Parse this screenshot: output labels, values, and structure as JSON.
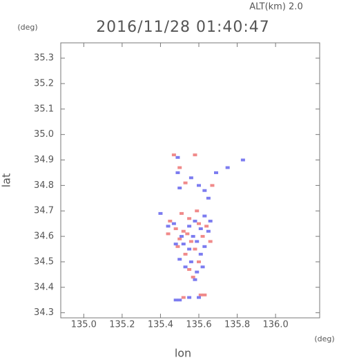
{
  "chart_data": {
    "type": "scatter",
    "title": "2016/11/28 01:40:47",
    "annotation": "ALT(km) 2.0",
    "y_unit": "(deg)",
    "x_unit": "(deg)",
    "x_label": "lon",
    "y_label": "lat",
    "xlim": [
      134.88,
      136.23
    ],
    "ylim": [
      34.28,
      35.36
    ],
    "xticks": [
      {
        "value": 135.0,
        "label": "135.0"
      },
      135.2,
      135.4,
      135.6,
      135.8,
      {
        "value": 136.0,
        "label": "136.0"
      }
    ],
    "yticks": [
      34.3,
      34.4,
      34.5,
      34.6,
      34.7,
      34.8,
      34.9,
      {
        "value": 35.0,
        "label": "35.0"
      },
      35.1,
      35.2,
      35.3
    ],
    "series": [
      {
        "color": "#f08a8a",
        "x": [
          135.47,
          135.58,
          135.5,
          135.53,
          135.67,
          135.55,
          135.6,
          135.48,
          135.52,
          135.54,
          135.5,
          135.56,
          135.62,
          135.58,
          135.53,
          135.6,
          135.55,
          135.64,
          135.45,
          135.49,
          135.57,
          135.61,
          135.63,
          135.52,
          135.44,
          135.66,
          135.59,
          135.51
        ],
        "y": [
          34.92,
          34.92,
          34.87,
          34.81,
          34.8,
          34.67,
          34.65,
          34.63,
          34.62,
          34.61,
          34.59,
          34.58,
          34.6,
          34.55,
          34.53,
          34.5,
          34.47,
          34.64,
          34.66,
          34.56,
          34.44,
          34.37,
          34.37,
          34.36,
          34.61,
          34.58,
          34.7,
          34.69
        ]
      },
      {
        "color": "#7c7cf0",
        "x": [
          135.49,
          135.83,
          135.75,
          135.49,
          135.56,
          135.6,
          135.63,
          135.5,
          135.69,
          135.65,
          135.4,
          135.44,
          135.47,
          135.58,
          135.63,
          135.61,
          135.65,
          135.55,
          135.51,
          135.59,
          135.63,
          135.55,
          135.48,
          135.61,
          135.5,
          135.56,
          135.62,
          135.53,
          135.59,
          135.58,
          135.5,
          135.55,
          135.6,
          135.48,
          135.66,
          135.57,
          135.52
        ],
        "y": [
          34.91,
          34.9,
          34.87,
          34.85,
          34.83,
          34.8,
          34.78,
          34.79,
          34.85,
          34.75,
          34.69,
          34.64,
          34.65,
          34.66,
          34.68,
          34.63,
          34.62,
          34.64,
          34.6,
          34.58,
          34.56,
          34.55,
          34.57,
          34.53,
          34.51,
          34.5,
          34.48,
          34.48,
          34.46,
          34.43,
          34.35,
          34.36,
          34.36,
          34.35,
          34.66,
          34.6,
          34.57
        ]
      }
    ]
  }
}
